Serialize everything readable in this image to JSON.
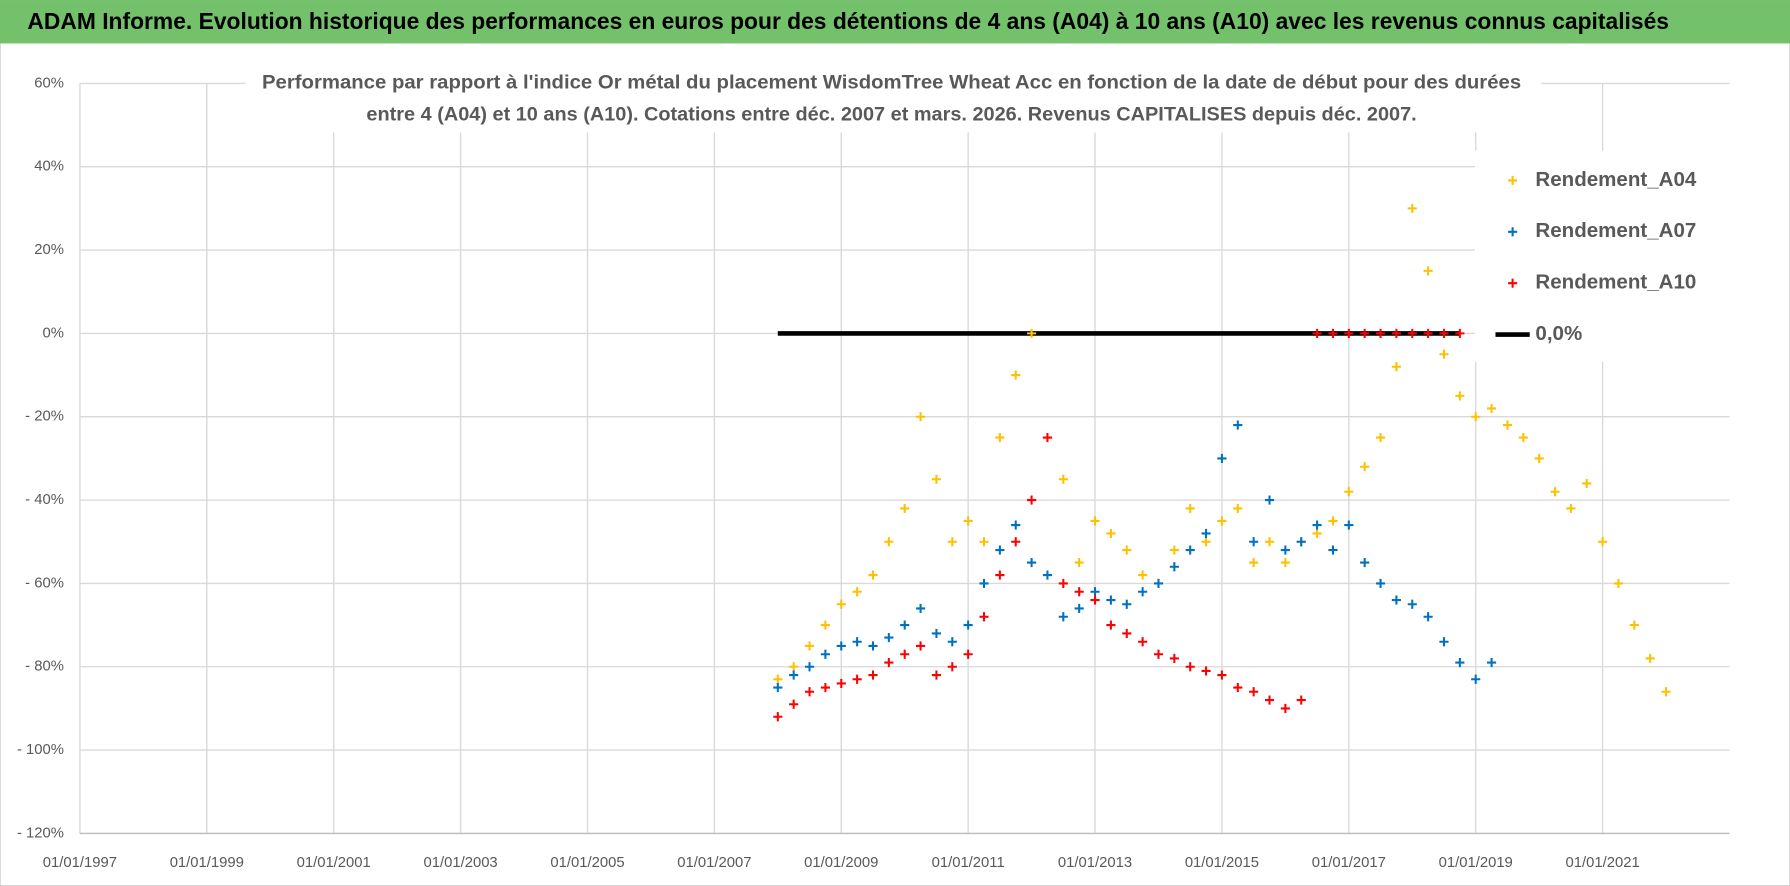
{
  "header": {
    "title": "ADAM Informe. Evolution historique des performances en euros pour des détentions de 4 ans (A04) à 10 ans (A10) avec les revenus connus capitalisés"
  },
  "chart_data": {
    "type": "scatter",
    "title": [
      "Performance par rapport à l'indice Or métal  du placement WisdomTree Wheat Acc en fonction de la date de début pour des durées",
      "entre 4 (A04) et 10 ans (A10).  Cotations entre déc. 2007 et mars. 2026. Revenus CAPITALISES depuis déc. 2007."
    ],
    "xlim": [
      "01/01/1997",
      "01/01/2023"
    ],
    "xticks": [
      "01/01/1997",
      "01/01/1999",
      "01/01/2001",
      "01/01/2003",
      "01/01/2005",
      "01/01/2007",
      "01/01/2009",
      "01/01/2011",
      "01/01/2013",
      "01/01/2015",
      "01/01/2017",
      "01/01/2019",
      "01/01/2021"
    ],
    "ylim": [
      -120,
      60
    ],
    "yticks": [
      {
        "value": 60,
        "label": "60%"
      },
      {
        "value": 40,
        "label": "40%"
      },
      {
        "value": 20,
        "label": "20%"
      },
      {
        "value": 0,
        "label": "0%"
      },
      {
        "value": -20,
        "label": "- 20%"
      },
      {
        "value": -40,
        "label": "- 40%"
      },
      {
        "value": -60,
        "label": "- 60%"
      },
      {
        "value": -80,
        "label": "- 80%"
      },
      {
        "value": -100,
        "label": "- 100%"
      },
      {
        "value": -120,
        "label": "- 120%"
      }
    ],
    "grid": true,
    "legend": "top-right",
    "series": [
      {
        "name": "Rendement_A04",
        "color": "#ffc000",
        "x": [
          "01/01/2008",
          "01/04/2008",
          "01/07/2008",
          "01/10/2008",
          "01/01/2009",
          "01/04/2009",
          "01/07/2009",
          "01/10/2009",
          "01/01/2010",
          "01/04/2010",
          "01/07/2010",
          "01/10/2010",
          "01/01/2011",
          "01/04/2011",
          "01/07/2011",
          "01/10/2011",
          "01/01/2012",
          "01/04/2012",
          "01/07/2012",
          "01/10/2012",
          "01/01/2013",
          "01/04/2013",
          "01/07/2013",
          "01/10/2013",
          "01/01/2014",
          "01/04/2014",
          "01/07/2014",
          "01/10/2014",
          "01/01/2015",
          "01/04/2015",
          "01/07/2015",
          "01/10/2015",
          "01/01/2016",
          "01/04/2016",
          "01/07/2016",
          "01/10/2016",
          "01/01/2017",
          "01/04/2017",
          "01/07/2017",
          "01/10/2017",
          "01/01/2018",
          "01/04/2018",
          "01/07/2018",
          "01/10/2018",
          "01/01/2019",
          "01/04/2019",
          "01/07/2019",
          "01/10/2019",
          "01/01/2020",
          "01/04/2020",
          "01/07/2020",
          "01/10/2020",
          "01/01/2021",
          "01/04/2021",
          "01/07/2021",
          "01/10/2021",
          "01/01/2022"
        ],
        "values": [
          -83,
          -80,
          -75,
          -70,
          -65,
          -62,
          -58,
          -50,
          -42,
          -20,
          -35,
          -50,
          -45,
          -50,
          -25,
          -10,
          0,
          -25,
          -35,
          -55,
          -45,
          -48,
          -52,
          -58,
          -60,
          -52,
          -42,
          -50,
          -45,
          -42,
          -55,
          -50,
          -55,
          -50,
          -48,
          -45,
          -38,
          -32,
          -25,
          -8,
          30,
          15,
          -5,
          -15,
          -20,
          -18,
          -22,
          -25,
          -30,
          -38,
          -42,
          -36,
          -50,
          -60,
          -70,
          -78,
          -86
        ]
      },
      {
        "name": "Rendement_A07",
        "color": "#0070c0",
        "x": [
          "01/01/2008",
          "01/04/2008",
          "01/07/2008",
          "01/10/2008",
          "01/01/2009",
          "01/04/2009",
          "01/07/2009",
          "01/10/2009",
          "01/01/2010",
          "01/04/2010",
          "01/07/2010",
          "01/10/2010",
          "01/01/2011",
          "01/04/2011",
          "01/07/2011",
          "01/10/2011",
          "01/01/2012",
          "01/04/2012",
          "01/07/2012",
          "01/10/2012",
          "01/01/2013",
          "01/04/2013",
          "01/07/2013",
          "01/10/2013",
          "01/01/2014",
          "01/04/2014",
          "01/07/2014",
          "01/10/2014",
          "01/01/2015",
          "01/04/2015",
          "01/07/2015",
          "01/10/2015",
          "01/01/2016",
          "01/04/2016",
          "01/07/2016",
          "01/10/2016",
          "01/01/2017",
          "01/04/2017",
          "01/07/2017",
          "01/10/2017",
          "01/01/2018",
          "01/04/2018",
          "01/07/2018",
          "01/10/2018",
          "01/01/2019",
          "01/04/2019"
        ],
        "values": [
          -85,
          -82,
          -80,
          -77,
          -75,
          -74,
          -75,
          -73,
          -70,
          -66,
          -72,
          -74,
          -70,
          -60,
          -52,
          -46,
          -55,
          -58,
          -68,
          -66,
          -62,
          -64,
          -65,
          -62,
          -60,
          -56,
          -52,
          -48,
          -30,
          -22,
          -50,
          -40,
          -52,
          -50,
          -46,
          -52,
          -46,
          -55,
          -60,
          -64,
          -65,
          -68,
          -74,
          -79,
          -83,
          -79
        ]
      },
      {
        "name": "Rendement_A10",
        "color": "#ff0000",
        "x": [
          "01/01/2008",
          "01/04/2008",
          "01/07/2008",
          "01/10/2008",
          "01/01/2009",
          "01/04/2009",
          "01/07/2009",
          "01/10/2009",
          "01/01/2010",
          "01/04/2010",
          "01/07/2010",
          "01/10/2010",
          "01/01/2011",
          "01/04/2011",
          "01/07/2011",
          "01/10/2011",
          "01/01/2012",
          "01/04/2012",
          "01/07/2012",
          "01/10/2012",
          "01/01/2013",
          "01/04/2013",
          "01/07/2013",
          "01/10/2013",
          "01/01/2014",
          "01/04/2014",
          "01/07/2014",
          "01/10/2014",
          "01/01/2015",
          "01/04/2015",
          "01/07/2015",
          "01/10/2015",
          "01/01/2016",
          "01/04/2016",
          "01/07/2016",
          "01/10/2016",
          "01/01/2017",
          "01/04/2017",
          "01/07/2017",
          "01/10/2017",
          "01/01/2018",
          "01/04/2018",
          "01/07/2018",
          "01/10/2018"
        ],
        "values": [
          -92,
          -89,
          -86,
          -85,
          -84,
          -83,
          -82,
          -79,
          -77,
          -75,
          -82,
          -80,
          -77,
          -68,
          -58,
          -50,
          -40,
          -25,
          -60,
          -62,
          -64,
          -70,
          -72,
          -74,
          -77,
          -78,
          -80,
          -81,
          -82,
          -85,
          -86,
          -88,
          -90,
          -88,
          0,
          0,
          0,
          0,
          0,
          0,
          0,
          0,
          0,
          0
        ]
      },
      {
        "name": "0,0%",
        "color": "#000000",
        "type": "line",
        "x": [
          "01/01/2008",
          "01/10/2018"
        ],
        "values": [
          0,
          0
        ]
      }
    ]
  }
}
